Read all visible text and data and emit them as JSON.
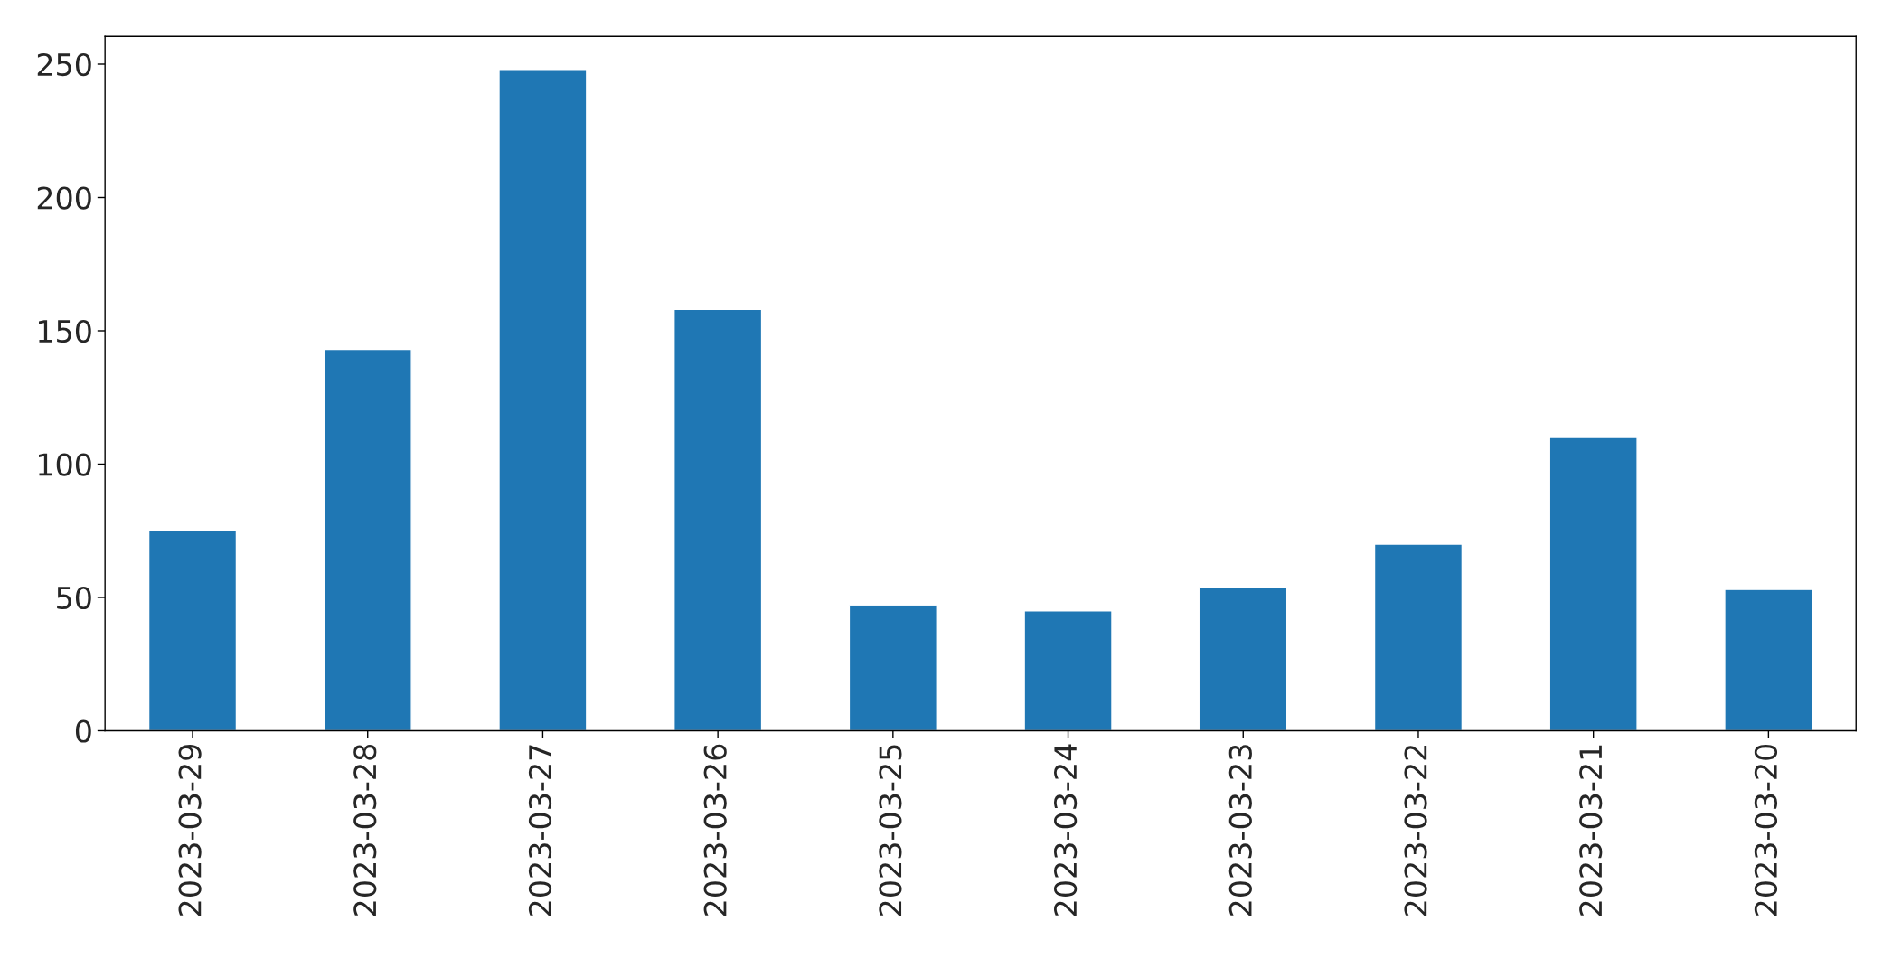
{
  "chart_data": {
    "type": "bar",
    "categories": [
      "2023-03-29",
      "2023-03-28",
      "2023-03-27",
      "2023-03-26",
      "2023-03-25",
      "2023-03-24",
      "2023-03-23",
      "2023-03-22",
      "2023-03-21",
      "2023-03-20"
    ],
    "values": [
      75,
      143,
      248,
      158,
      47,
      45,
      54,
      70,
      110,
      53
    ],
    "color": "#1f77b4",
    "ylim": [
      0,
      260.4
    ],
    "yticks": [
      0,
      50,
      100,
      150,
      200,
      250
    ],
    "grid": false,
    "legend": false
  }
}
